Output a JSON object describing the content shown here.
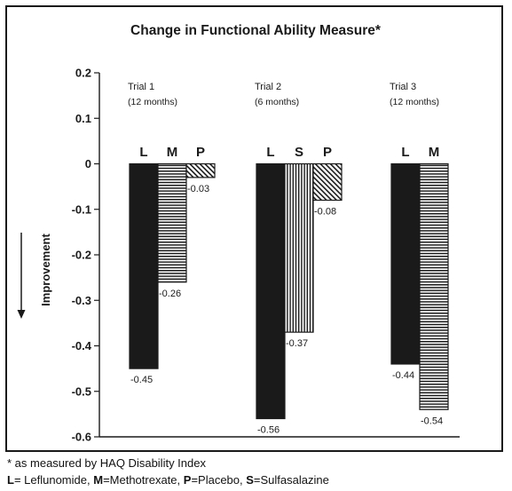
{
  "chart_data": {
    "type": "bar",
    "title": "Change in Functional Ability Measure*",
    "ylabel": "Improvement",
    "ylim": [
      -0.6,
      0.2
    ],
    "yticks": [
      "0.2",
      "0.1",
      "0",
      "-0.1",
      "-0.2",
      "-0.3",
      "-0.4",
      "-0.5",
      "-0.6"
    ],
    "yvalues": [
      0.2,
      0.1,
      0,
      -0.1,
      -0.2,
      -0.3,
      -0.4,
      -0.5,
      -0.6
    ],
    "grid": false,
    "groups": [
      {
        "name": "Trial 1",
        "subtitle": "(12 months)",
        "bars": [
          {
            "code": "L",
            "value": -0.45,
            "label": "-0.45",
            "pattern": "solid"
          },
          {
            "code": "M",
            "value": -0.26,
            "label": "-0.26",
            "pattern": "horizontal"
          },
          {
            "code": "P",
            "value": -0.03,
            "label": "-0.03",
            "pattern": "diagonal"
          }
        ]
      },
      {
        "name": "Trial 2",
        "subtitle": "(6 months)",
        "bars": [
          {
            "code": "L",
            "value": -0.56,
            "label": "-0.56",
            "pattern": "solid"
          },
          {
            "code": "S",
            "value": -0.37,
            "label": "-0.37",
            "pattern": "vertical"
          },
          {
            "code": "P",
            "value": -0.08,
            "label": "-0.08",
            "pattern": "diagonal"
          }
        ]
      },
      {
        "name": "Trial 3",
        "subtitle": "(12 months)",
        "bars": [
          {
            "code": "L",
            "value": -0.44,
            "label": "-0.44",
            "pattern": "solid"
          },
          {
            "code": "M",
            "value": -0.54,
            "label": "-0.54",
            "pattern": "horizontal"
          }
        ]
      }
    ]
  },
  "footnotes": {
    "line1": "* as measured by HAQ Disability Index",
    "legend": [
      {
        "key": "L",
        "text": "= Leflunomide, "
      },
      {
        "key": "M",
        "text": "=Methotrexate, "
      },
      {
        "key": "P",
        "text": "=Placebo, "
      },
      {
        "key": "S",
        "text": "=Sulfasalazine"
      }
    ]
  },
  "colors": {
    "ink": "#1a1a1a",
    "background": "#ffffff"
  }
}
